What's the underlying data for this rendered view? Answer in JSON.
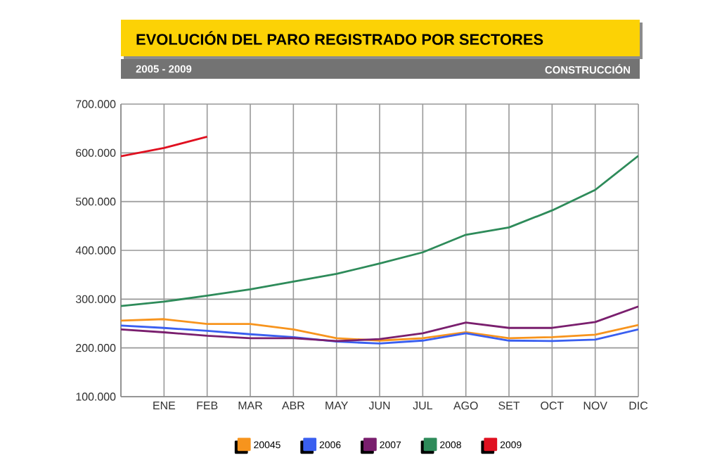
{
  "chart_data": {
    "type": "line",
    "title": "EVOLUCIÓN DEL PARO REGISTRADO POR SECTORES",
    "subtitle": "2005 - 2009",
    "annotations": [
      "CONSTRUCCIÓN"
    ],
    "categories": [
      null,
      "ENE",
      "FEB",
      "MAR",
      "ABR",
      "MAY",
      "JUN",
      "JUL",
      "AGO",
      "SET",
      "OCT",
      "NOV",
      "DIC"
    ],
    "series": [
      {
        "name": "20045",
        "color": "#f7941d",
        "values": [
          256000,
          259000,
          249000,
          249000,
          238000,
          220000,
          215000,
          220000,
          232000,
          220000,
          222000,
          227000,
          247000
        ]
      },
      {
        "name": "2006",
        "color": "#3a5ff0",
        "values": [
          246000,
          241000,
          235000,
          228000,
          222000,
          213000,
          209000,
          215000,
          230000,
          215000,
          214000,
          217000,
          238000
        ]
      },
      {
        "name": "2007",
        "color": "#7a1f6e",
        "values": [
          238000,
          232000,
          225000,
          220000,
          220000,
          214000,
          218000,
          230000,
          252000,
          241000,
          241000,
          253000,
          285000
        ]
      },
      {
        "name": "2008",
        "color": "#2e8b5a",
        "values": [
          286000,
          295000,
          307000,
          320000,
          336000,
          352000,
          373000,
          396000,
          432000,
          447000,
          482000,
          524000,
          594000
        ]
      },
      {
        "name": "2009",
        "color": "#e01020",
        "values": [
          593000,
          610000,
          633000,
          null,
          null,
          null,
          null,
          null,
          null,
          null,
          null,
          null,
          null
        ]
      }
    ],
    "ylim": [
      100000,
      700000
    ],
    "yticks": [
      {
        "value": 100000,
        "label": "100.000"
      },
      {
        "value": 200000,
        "label": "200.000"
      },
      {
        "value": 300000,
        "label": "300.000"
      },
      {
        "value": 400000,
        "label": "400.000"
      },
      {
        "value": 500000,
        "label": "500.000"
      },
      {
        "value": 600000,
        "label": "600.000"
      },
      {
        "value": 700000,
        "label": "700.000"
      }
    ],
    "grid": true,
    "legend": "bottom",
    "marker": "none",
    "line_style": "solid"
  }
}
